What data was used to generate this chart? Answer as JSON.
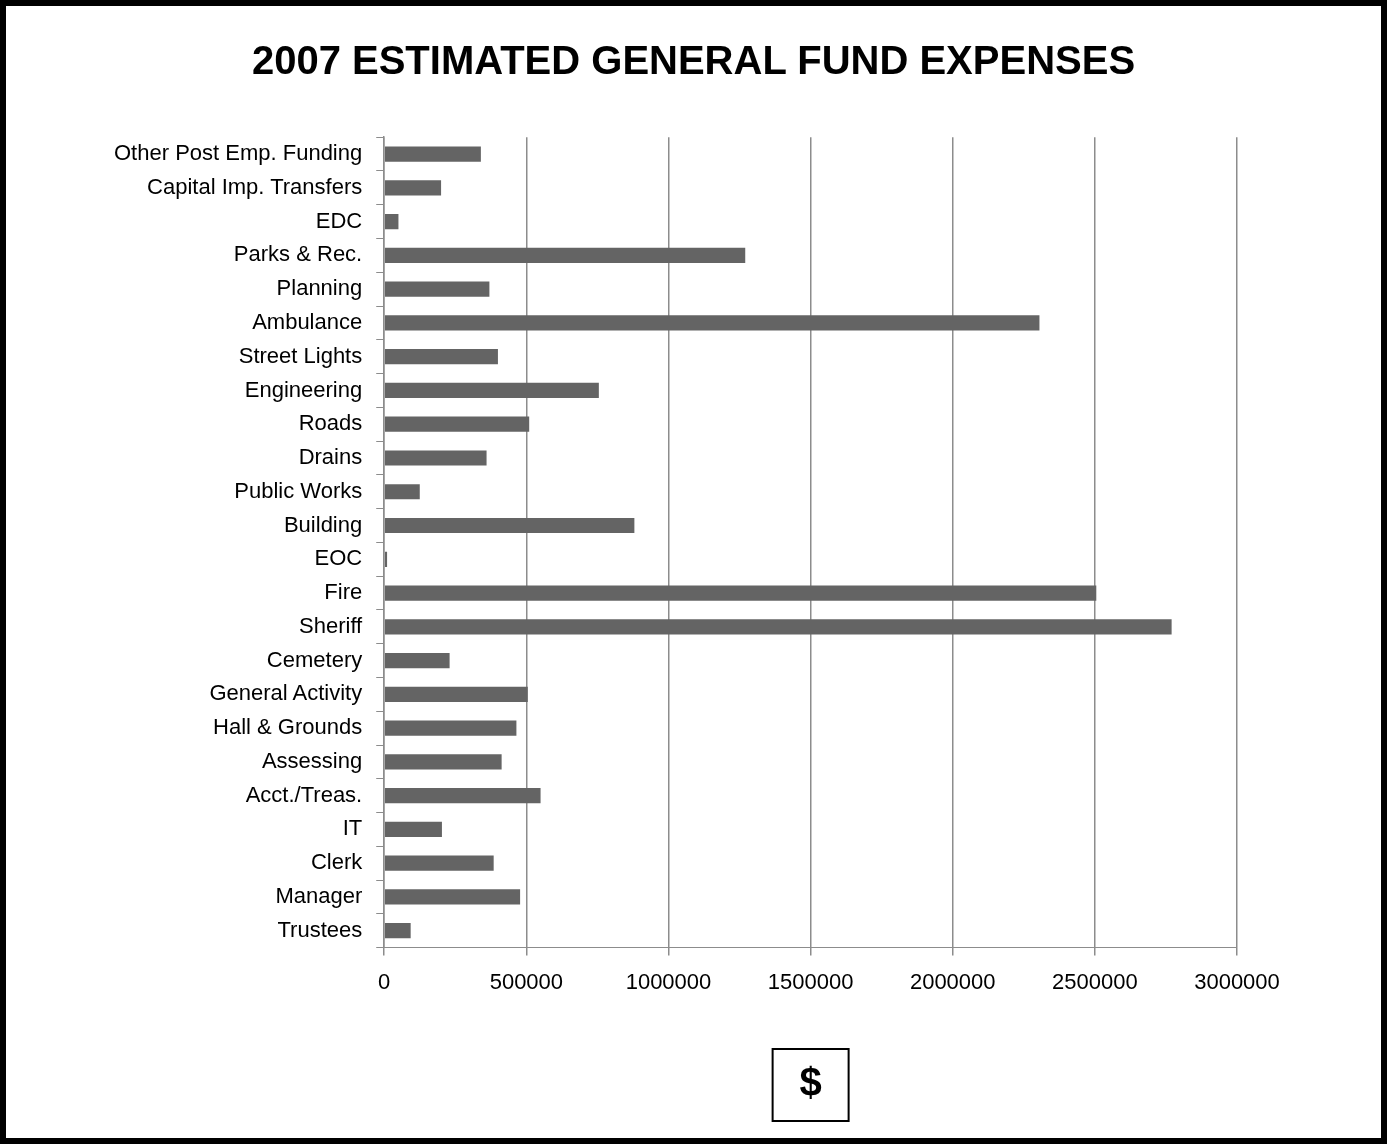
{
  "chart_data": {
    "type": "bar",
    "orientation": "horizontal",
    "title": "2007 ESTIMATED GENERAL FUND EXPENSES",
    "xlabel": "$",
    "categories": [
      "Other Post Emp. Funding",
      "Capital Imp. Transfers",
      "EDC",
      "Parks & Rec.",
      "Planning",
      "Ambulance",
      "Street Lights",
      "Engineering",
      "Roads",
      "Drains",
      "Public Works",
      "Building",
      "EOC",
      "Fire",
      "Sheriff",
      "Cemetery",
      "General Activity",
      "Hall & Grounds",
      "Assessing",
      "Acct./Treas.",
      "IT",
      "Clerk",
      "Manager",
      "Trustees"
    ],
    "values": [
      340000,
      200000,
      50000,
      1270000,
      370000,
      2305000,
      400000,
      755000,
      510000,
      360000,
      125000,
      880000,
      10000,
      2505000,
      2770000,
      230000,
      505000,
      465000,
      413000,
      550000,
      203000,
      385000,
      478000,
      93000
    ],
    "color": "#646464",
    "xlim": [
      0,
      3000000
    ],
    "xticks": [
      0,
      500000,
      1000000,
      1500000,
      2000000,
      2500000,
      3000000
    ],
    "grid": "x"
  }
}
